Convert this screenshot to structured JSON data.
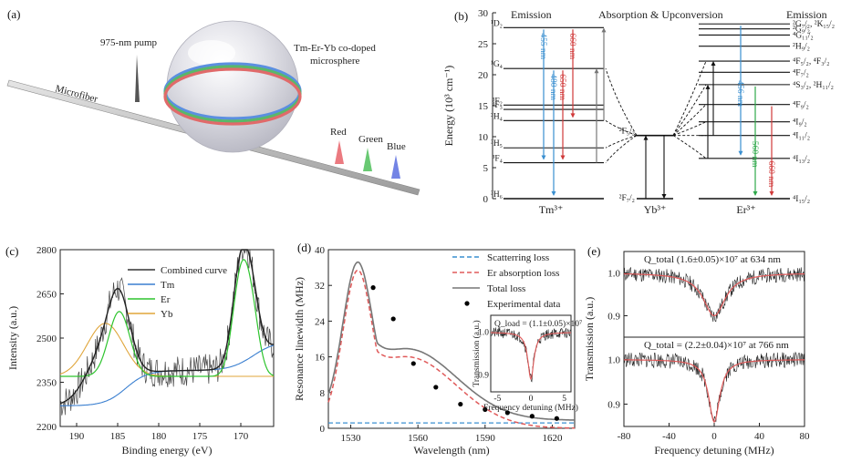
{
  "panels": {
    "a": {
      "label": "(a)",
      "pump_label": "975-nm pump",
      "microfiber_label": "Microfiber",
      "sphere_label_1": "Tm-Er-Yb co-doped",
      "sphere_label_2": "microsphere",
      "ring_colors": [
        "#5b8fe0",
        "#59b86a",
        "#e06a6a"
      ],
      "emissions": [
        {
          "label": "Red",
          "color": "#e8636a"
        },
        {
          "label": "Green",
          "color": "#4fbf5a"
        },
        {
          "label": "Blue",
          "color": "#5a6fe0"
        }
      ]
    },
    "b": {
      "label": "(b)",
      "headers": [
        "Emission",
        "Absorption & Upconversion",
        "Emission"
      ],
      "ylabel": "Energy (10³ cm⁻¹)",
      "yticks": [
        0,
        5,
        10,
        15,
        20,
        25,
        30
      ],
      "ylim": [
        0,
        30
      ],
      "tm_label": "Tm³⁺",
      "yb_label": "Yb³⁺",
      "er_label": "Er³⁺",
      "tm_levels": [
        {
          "name": "³H₆",
          "e": 0
        },
        {
          "name": "³F₄",
          "e": 5.8
        },
        {
          "name": "³H₅",
          "e": 8.2
        },
        {
          "name": "³H₄",
          "e": 12.6
        },
        {
          "name": "³F₃",
          "e": 14.4
        },
        {
          "name": "³F₂",
          "e": 15.1
        },
        {
          "name": "¹G₄",
          "e": 21.0
        },
        {
          "name": "¹D₂",
          "e": 27.6
        }
      ],
      "yb_levels": [
        {
          "name": "²F₇/₂",
          "e": 0
        },
        {
          "name": "²F₅/₂",
          "e": 10.2
        }
      ],
      "er_levels": [
        {
          "name": "⁴I₁₅/₂",
          "e": 0
        },
        {
          "name": "⁴I₁₃/₂",
          "e": 6.5
        },
        {
          "name": "⁴I₁₁/₂",
          "e": 10.2
        },
        {
          "name": "⁴I₉/₂",
          "e": 12.4
        },
        {
          "name": "⁴F₉/₂",
          "e": 15.2
        },
        {
          "name": "⁴S₃/₂, ²H₁₁/₂",
          "e": 18.4
        },
        {
          "name": "⁴F₇/₂",
          "e": 20.4
        },
        {
          "name": "⁴F₅/₂, ⁴F₃/₂",
          "e": 22.2
        },
        {
          "name": "²H₉/₂",
          "e": 24.6
        },
        {
          "name": "⁴G₁₁/₂",
          "e": 26.4
        },
        {
          "name": "²G₉/₂",
          "e": 27.4
        },
        {
          "name": "²G₇/₂, ²K₁₅/₂",
          "e": 28.2
        }
      ],
      "tm_emissions": [
        {
          "label": "455 nm",
          "from": 27.6,
          "to": 5.8,
          "color": "#3a8fd0"
        },
        {
          "label": "480 nm",
          "from": 21.0,
          "to": 0,
          "color": "#3a8fd0"
        },
        {
          "label": "650 nm",
          "from": 21.0,
          "to": 5.8,
          "color": "#d03a3a"
        },
        {
          "label": "660 nm",
          "from": 27.6,
          "to": 12.6,
          "color": "#d03a3a"
        }
      ],
      "er_emissions": [
        {
          "label": "456 nm",
          "from": 28.2,
          "to": 6.5,
          "color": "#3a8fd0"
        },
        {
          "label": "560 nm",
          "from": 18.4,
          "to": 0,
          "color": "#2ea84a"
        },
        {
          "label": "660 nm",
          "from": 15.2,
          "to": 0,
          "color": "#d03a3a"
        }
      ]
    },
    "c": {
      "label": "(c)",
      "xlabel": "Binding energy (eV)",
      "ylabel": "Intensity (a.u.)",
      "xticks": [
        190,
        185,
        180,
        175,
        170
      ],
      "yticks": [
        2200,
        2350,
        2500,
        2650,
        2800
      ],
      "xlim": [
        192,
        166
      ],
      "ylim": [
        2200,
        2800
      ],
      "legend": [
        {
          "label": "Combined curve",
          "color": "#333333"
        },
        {
          "label": "Tm",
          "color": "#3a7fd0"
        },
        {
          "label": "Er",
          "color": "#2ec42e"
        },
        {
          "label": "Yb",
          "color": "#e0a53a"
        }
      ]
    },
    "d": {
      "label": "(d)",
      "xlabel": "Wavelength (nm)",
      "ylabel": "Resonance linewidth (MHz)",
      "xticks": [
        1530,
        1560,
        1590,
        1620
      ],
      "yticks": [
        0,
        8,
        16,
        24,
        32,
        40
      ],
      "xlim": [
        1520,
        1630
      ],
      "ylim": [
        0,
        40
      ],
      "legend": [
        {
          "label": "Scatterring loss",
          "color": "#3a8fd0",
          "style": "dash"
        },
        {
          "label": "Er absorption loss",
          "color": "#e05a5a",
          "style": "dash"
        },
        {
          "label": "Total loss",
          "color": "#777777",
          "style": "solid"
        },
        {
          "label": "Experimental data",
          "color": "#000000",
          "style": "dot"
        }
      ],
      "experimental": [
        {
          "x": 1540,
          "y": 31.5
        },
        {
          "x": 1549,
          "y": 24.5
        },
        {
          "x": 1558,
          "y": 14.5
        },
        {
          "x": 1568,
          "y": 9.2
        },
        {
          "x": 1579,
          "y": 5.4
        },
        {
          "x": 1590,
          "y": 4.2
        },
        {
          "x": 1600,
          "y": 3.5
        },
        {
          "x": 1611,
          "y": 2.7
        },
        {
          "x": 1622,
          "y": 2.2
        }
      ],
      "inset": {
        "q_label": "Q_load = (1.1±0.05)×10⁷",
        "xlabel": "Frequency detuning (MHz)",
        "ylabel": "Transmission (a.u.)",
        "xticks": [
          -5,
          0,
          5
        ],
        "yticks": [
          0.9,
          1.0
        ]
      }
    },
    "e": {
      "label": "(e)",
      "xlabel": "Frequency detuning (MHz)",
      "ylabel": "Transmission (a.u.)",
      "xticks": [
        -80,
        -40,
        0,
        40,
        80
      ],
      "yticks": [
        0.9,
        1.0
      ],
      "top_label": "Q_total   (1.6±0.05)×10⁷ at 634 nm",
      "bottom_label": "Q_total = (2.2±0.04)×10⁷ at 766 nm"
    }
  }
}
